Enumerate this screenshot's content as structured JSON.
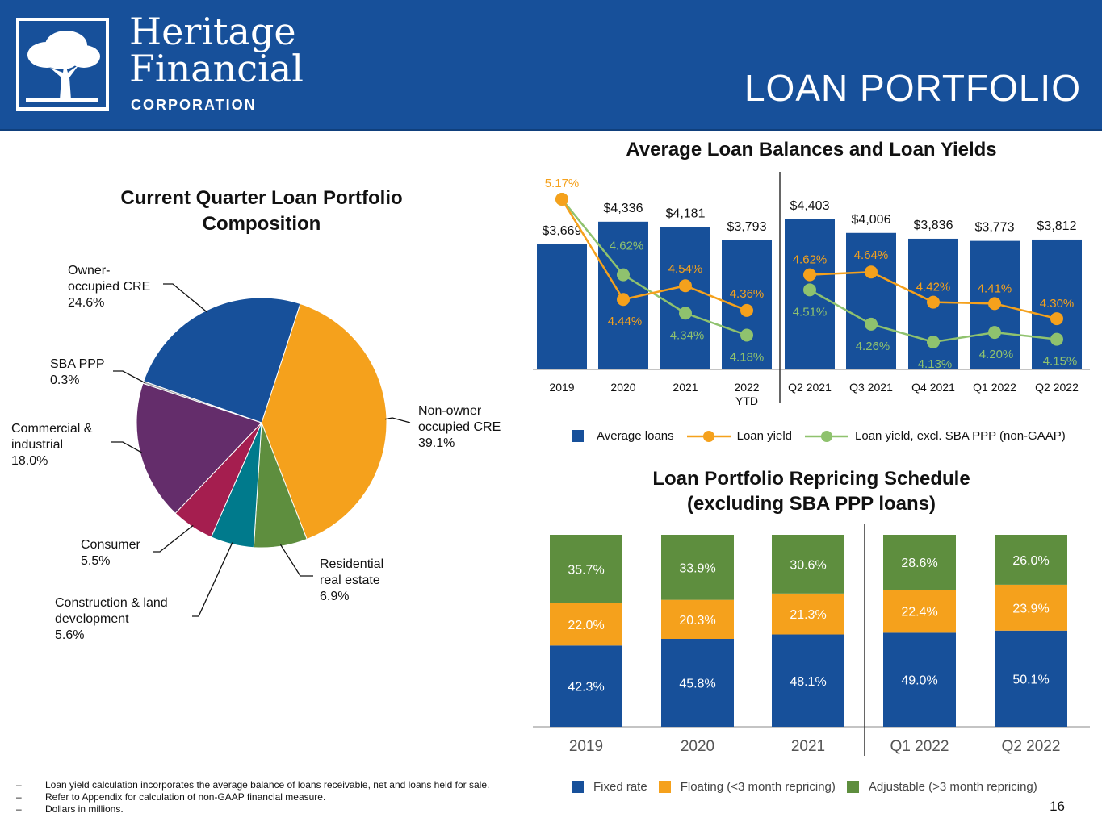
{
  "header": {
    "logo_name_line1": "Heritage",
    "logo_name_line2": "Financial",
    "logo_sub": "CORPORATION",
    "page_title": "LOAN PORTFOLIO"
  },
  "colors": {
    "header_bg": "#17509a",
    "blue": "#17509a",
    "orange": "#f5a11c",
    "green": "#5e8e3e",
    "light_green": "#8fc26e",
    "purple": "#642d6b",
    "crimson": "#a51e4f",
    "teal": "#007a8c",
    "gray": "#a7a9ac"
  },
  "pie_title_line1": "Current Quarter Loan Portfolio",
  "pie_title_line2": "Composition",
  "bar_title": "Average Loan Balances and Loan Yields",
  "stack_title_line1": "Loan Portfolio Repricing Schedule",
  "stack_title_line2": "(excluding SBA PPP loans)",
  "bar_legend": {
    "avg": "Average loans",
    "yield": "Loan yield",
    "yield_ex": "Loan yield, excl. SBA PPP (non-GAAP)"
  },
  "stack_legend": {
    "fixed": "Fixed rate",
    "floating": "Floating (<3 month repricing)",
    "adjustable": "Adjustable (>3 month repricing)"
  },
  "notes": [
    "Loan yield calculation incorporates the average balance of loans receivable, net and loans held for sale.",
    "Refer to Appendix for calculation of non-GAAP financial measure.",
    "Dollars in millions."
  ],
  "note_dash": "–",
  "page_number": "16",
  "chart_data": [
    {
      "type": "pie",
      "title": "Current Quarter Loan Portfolio Composition",
      "slices": [
        {
          "label_lines": [
            "Non-owner",
            "occupied CRE",
            "39.1%"
          ],
          "value": 39.1,
          "color": "#f5a11c"
        },
        {
          "label_lines": [
            "Residential",
            "real estate",
            "6.9%"
          ],
          "value": 6.9,
          "color": "#5e8e3e"
        },
        {
          "label_lines": [
            "Construction & land",
            "development",
            "5.6%"
          ],
          "value": 5.6,
          "color": "#007a8c"
        },
        {
          "label_lines": [
            "Consumer",
            "5.5%"
          ],
          "value": 5.5,
          "color": "#a51e4f"
        },
        {
          "label_lines": [
            "Commercial &",
            "industrial",
            "18.0%"
          ],
          "value": 18.0,
          "color": "#642d6b"
        },
        {
          "label_lines": [
            "SBA PPP",
            "0.3%"
          ],
          "value": 0.3,
          "color": "#a7a9ac"
        },
        {
          "label_lines": [
            "Owner-",
            "occupied CRE",
            "24.6%"
          ],
          "value": 24.6,
          "color": "#17509a"
        }
      ]
    },
    {
      "type": "bar",
      "title": "Average Loan Balances and Loan Yields",
      "categories": [
        "2019",
        "2020",
        "2021",
        "2022 YTD",
        "Q2 2021",
        "Q3 2021",
        "Q4 2021",
        "Q1 2022",
        "Q2 2022"
      ],
      "category_lines": [
        [
          "2019"
        ],
        [
          "2020"
        ],
        [
          "2021"
        ],
        [
          "2022",
          "YTD"
        ],
        [
          "Q2 2021"
        ],
        [
          "Q3 2021"
        ],
        [
          "Q4 2021"
        ],
        [
          "Q1 2022"
        ],
        [
          "Q2 2022"
        ]
      ],
      "average_loans": [
        3669,
        4336,
        4181,
        3793,
        4403,
        4006,
        3836,
        3773,
        3812
      ],
      "average_loans_labels": [
        "$3,669",
        "$4,336",
        "$4,181",
        "$3,793",
        "$4,403",
        "$4,006",
        "$3,836",
        "$3,773",
        "$3,812"
      ],
      "loan_yield": [
        5.17,
        4.44,
        4.54,
        4.36,
        4.62,
        4.64,
        4.42,
        4.41,
        4.3
      ],
      "loan_yield_excl_sba_ppp": [
        5.17,
        4.62,
        4.34,
        4.18,
        4.51,
        4.26,
        4.13,
        4.2,
        4.15
      ],
      "legend": [
        "Average loans",
        "Loan yield",
        "Loan yield, excl. SBA PPP (non-GAAP)"
      ]
    },
    {
      "type": "bar",
      "stacked": true,
      "title": "Loan Portfolio Repricing Schedule (excluding SBA PPP loans)",
      "categories": [
        "2019",
        "2020",
        "2021",
        "Q1 2022",
        "Q2 2022"
      ],
      "series": [
        {
          "name": "Fixed rate",
          "values": [
            42.3,
            45.8,
            48.1,
            49.0,
            50.1
          ],
          "color": "#17509a"
        },
        {
          "name": "Floating (<3 month repricing)",
          "values": [
            22.0,
            20.3,
            21.3,
            22.4,
            23.9
          ],
          "color": "#f5a11c"
        },
        {
          "name": "Adjustable (>3 month repricing)",
          "values": [
            35.7,
            33.9,
            30.6,
            28.6,
            26.0
          ],
          "color": "#5e8e3e"
        }
      ]
    }
  ]
}
